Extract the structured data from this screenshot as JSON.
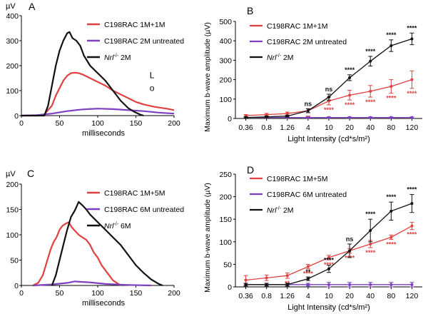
{
  "colors": {
    "red": "#e04040",
    "purple": "#7d3fc0",
    "black": "#111111"
  },
  "chart_data": [
    {
      "panel": "A",
      "type": "line",
      "unit_label": "µV",
      "xlabel": "milliseconds",
      "xlim": [
        0,
        200
      ],
      "ylim": [
        0,
        400
      ],
      "xticks": [
        0,
        50,
        100,
        150,
        200
      ],
      "yticks": [
        0,
        100,
        200,
        300,
        400
      ],
      "annotation": "L\no",
      "legend": [
        {
          "label": "C198RAC 1M+1M",
          "color": "#e04040"
        },
        {
          "label": "C198RAC 2M untreated",
          "color": "#7d3fc0"
        },
        {
          "label": "Nrl⁻/⁻ 2M",
          "color": "#111111"
        }
      ],
      "series": [
        {
          "color": "#e04040",
          "points": [
            [
              0,
              0
            ],
            [
              20,
              0
            ],
            [
              30,
              5
            ],
            [
              40,
              40
            ],
            [
              45,
              80
            ],
            [
              50,
              110
            ],
            [
              55,
              140
            ],
            [
              60,
              160
            ],
            [
              65,
              170
            ],
            [
              70,
              172
            ],
            [
              75,
              170
            ],
            [
              80,
              165
            ],
            [
              90,
              150
            ],
            [
              100,
              135
            ],
            [
              110,
              120
            ],
            [
              120,
              100
            ],
            [
              130,
              85
            ],
            [
              140,
              70
            ],
            [
              150,
              55
            ],
            [
              160,
              45
            ],
            [
              175,
              35
            ],
            [
              190,
              28
            ],
            [
              200,
              22
            ]
          ]
        },
        {
          "color": "#7d3fc0",
          "points": [
            [
              0,
              0
            ],
            [
              20,
              2
            ],
            [
              40,
              8
            ],
            [
              60,
              18
            ],
            [
              80,
              25
            ],
            [
              100,
              28
            ],
            [
              120,
              26
            ],
            [
              140,
              22
            ],
            [
              160,
              18
            ],
            [
              180,
              12
            ],
            [
              200,
              8
            ]
          ]
        },
        {
          "color": "#111111",
          "points": [
            [
              0,
              0
            ],
            [
              30,
              0
            ],
            [
              35,
              40
            ],
            [
              40,
              120
            ],
            [
              45,
              200
            ],
            [
              50,
              260
            ],
            [
              55,
              300
            ],
            [
              60,
              330
            ],
            [
              63,
              335
            ],
            [
              67,
              310
            ],
            [
              72,
              300
            ],
            [
              77,
              280
            ],
            [
              82,
              240
            ],
            [
              90,
              200
            ],
            [
              100,
              170
            ],
            [
              110,
              140
            ],
            [
              120,
              100
            ],
            [
              130,
              60
            ],
            [
              140,
              30
            ],
            [
              148,
              15
            ],
            [
              155,
              5
            ],
            [
              160,
              0
            ]
          ]
        }
      ]
    },
    {
      "panel": "B",
      "type": "line",
      "ylabel": "Maximum b-wave amplitude (µV)",
      "xlabel": "Light Intensity (cd*s/m²)",
      "categories": [
        "0.36",
        "0.8",
        "1.26",
        "4",
        "10",
        "20",
        "40",
        "80",
        "120"
      ],
      "ylim": [
        0,
        500
      ],
      "yticks": [
        0,
        100,
        200,
        300,
        400,
        500
      ],
      "legend": [
        {
          "label": "C198RAC 1M+1M",
          "color": "#e04040"
        },
        {
          "label": "C198RAC 2M untreated",
          "color": "#7d3fc0"
        },
        {
          "label": "Nrl⁻/⁻ 2M",
          "color": "#111111"
        }
      ],
      "series": [
        {
          "color": "#e04040",
          "values": [
            15,
            20,
            25,
            40,
            90,
            120,
            140,
            165,
            200
          ],
          "errors": [
            5,
            6,
            8,
            10,
            20,
            25,
            30,
            35,
            45
          ],
          "stars": [
            "",
            "",
            "",
            "**",
            "****",
            "****",
            "****",
            "****",
            "****"
          ]
        },
        {
          "color": "#7d3fc0",
          "values": [
            5,
            5,
            5,
            5,
            5,
            5,
            5,
            5,
            5
          ],
          "errors": [
            3,
            3,
            3,
            3,
            3,
            3,
            3,
            3,
            3
          ]
        },
        {
          "color": "#111111",
          "values": [
            5,
            8,
            12,
            40,
            110,
            210,
            295,
            375,
            410
          ],
          "errors": [
            3,
            4,
            5,
            10,
            15,
            15,
            25,
            30,
            30
          ],
          "stars": [
            "",
            "",
            "",
            "ns",
            "ns",
            "****",
            "****",
            "****",
            "****"
          ]
        }
      ]
    },
    {
      "panel": "C",
      "type": "line",
      "unit_label": "µV",
      "xlabel": "milliseconds",
      "xlim": [
        0,
        200
      ],
      "ylim": [
        0,
        200
      ],
      "xticks": [
        0,
        50,
        100,
        150,
        200
      ],
      "yticks": [
        0,
        50,
        100,
        150,
        200
      ],
      "legend": [
        {
          "label": "C198RAC 1M+5M",
          "color": "#e04040"
        },
        {
          "label": "C198RAC 6M untreated",
          "color": "#7d3fc0"
        },
        {
          "label": "Nrl⁻/⁻ 6M",
          "color": "#111111"
        }
      ],
      "series": [
        {
          "color": "#e04040",
          "points": [
            [
              15,
              0
            ],
            [
              22,
              5
            ],
            [
              28,
              20
            ],
            [
              33,
              45
            ],
            [
              38,
              70
            ],
            [
              42,
              85
            ],
            [
              46,
              95
            ],
            [
              50,
              110
            ],
            [
              54,
              118
            ],
            [
              58,
              122
            ],
            [
              62,
              125
            ],
            [
              66,
              115
            ],
            [
              70,
              108
            ],
            [
              75,
              100
            ],
            [
              80,
              95
            ],
            [
              85,
              90
            ],
            [
              90,
              80
            ],
            [
              95,
              65
            ],
            [
              100,
              55
            ],
            [
              105,
              40
            ],
            [
              110,
              30
            ],
            [
              115,
              20
            ],
            [
              120,
              10
            ],
            [
              125,
              5
            ],
            [
              130,
              0
            ]
          ]
        },
        {
          "color": "#7d3fc0",
          "points": [
            [
              15,
              0
            ],
            [
              40,
              2
            ],
            [
              60,
              5
            ],
            [
              70,
              8
            ],
            [
              78,
              7
            ],
            [
              90,
              6
            ],
            [
              110,
              3
            ],
            [
              140,
              1
            ],
            [
              170,
              0
            ]
          ]
        },
        {
          "color": "#111111",
          "points": [
            [
              40,
              0
            ],
            [
              45,
              20
            ],
            [
              50,
              50
            ],
            [
              55,
              80
            ],
            [
              60,
              110
            ],
            [
              65,
              135
            ],
            [
              70,
              148
            ],
            [
              75,
              165
            ],
            [
              80,
              158
            ],
            [
              85,
              150
            ],
            [
              90,
              140
            ],
            [
              100,
              125
            ],
            [
              110,
              110
            ],
            [
              120,
              95
            ],
            [
              130,
              80
            ],
            [
              140,
              60
            ],
            [
              150,
              40
            ],
            [
              160,
              25
            ],
            [
              170,
              12
            ],
            [
              180,
              3
            ],
            [
              185,
              0
            ]
          ]
        }
      ]
    },
    {
      "panel": "D",
      "type": "line",
      "ylabel": "Maximum b-wave amplitude (µV)",
      "xlabel": "Light Intensity (cd*s/m²)",
      "categories": [
        "0.36",
        "0.8",
        "1.26",
        "4",
        "10",
        "20",
        "40",
        "80",
        "120"
      ],
      "ylim": [
        0,
        250
      ],
      "yticks": [
        0,
        50,
        100,
        150,
        200,
        250
      ],
      "legend": [
        {
          "label": "C198RAC 1M+5M",
          "color": "#e04040"
        },
        {
          "label": "C198RAC 6M untreated",
          "color": "#7d3fc0"
        },
        {
          "label": "Nrl⁻/⁻ 2M",
          "color": "#111111"
        }
      ],
      "series": [
        {
          "color": "#e04040",
          "values": [
            15,
            20,
            25,
            45,
            65,
            80,
            95,
            110,
            135
          ],
          "errors": [
            10,
            6,
            6,
            5,
            5,
            5,
            8,
            5,
            8
          ],
          "stars": [
            "",
            "",
            "**",
            "****",
            "****",
            "****",
            "****",
            "****",
            "****"
          ]
        },
        {
          "color": "#7d3fc0",
          "values": [
            5,
            5,
            5,
            5,
            5,
            5,
            5,
            5,
            5
          ],
          "errors": [
            3,
            3,
            3,
            3,
            5,
            5,
            5,
            5,
            5
          ]
        },
        {
          "color": "#111111",
          "values": [
            5,
            5,
            5,
            18,
            40,
            80,
            125,
            168,
            185
          ],
          "errors": [
            3,
            3,
            3,
            4,
            8,
            15,
            25,
            20,
            20
          ],
          "stars": [
            "",
            "",
            "",
            "**",
            "****",
            "ns",
            "****",
            "****",
            "****"
          ]
        }
      ]
    }
  ]
}
